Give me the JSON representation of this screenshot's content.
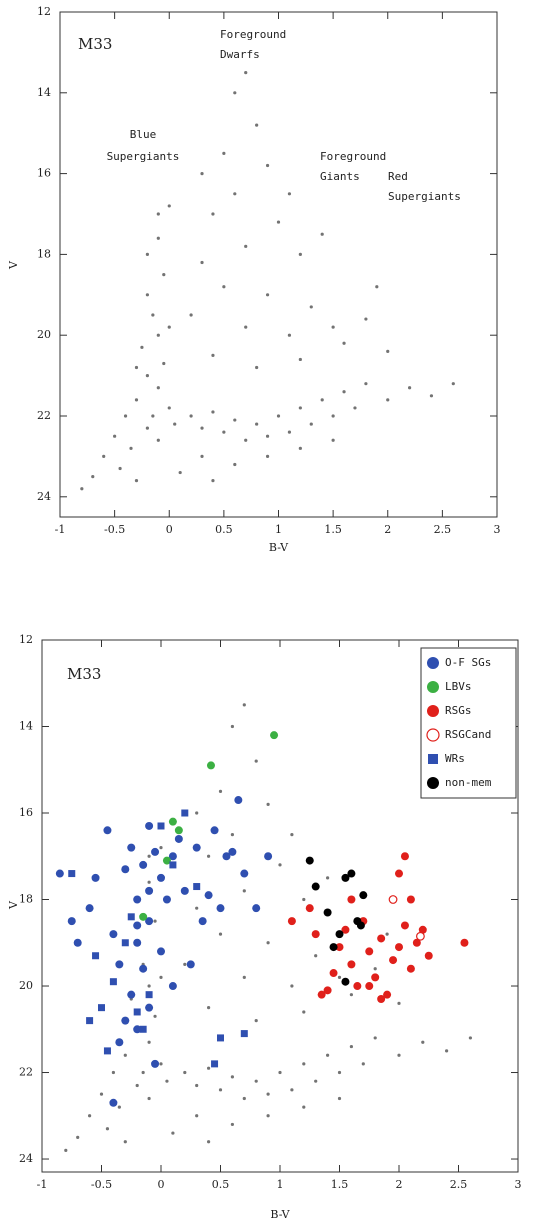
{
  "chart_data": [
    {
      "type": "scatter",
      "panel_label": "M33",
      "xlabel": "B-V",
      "ylabel": "V",
      "xlim": [
        -1,
        3
      ],
      "ylim": [
        24.5,
        12
      ],
      "xticks": [
        -1,
        -0.5,
        0,
        0.5,
        1,
        1.5,
        2,
        2.5,
        3
      ],
      "yticks": [
        12,
        14,
        16,
        18,
        20,
        22,
        24
      ],
      "annotations": [
        {
          "lines": [
            "Foreground",
            "Dwarfs"
          ]
        },
        {
          "lines": [
            "Blue",
            "Supergiants"
          ]
        },
        {
          "lines": [
            "Foreground",
            "Giants"
          ]
        },
        {
          "lines": [
            "Red",
            "Supergiants"
          ]
        }
      ],
      "series": [
        {
          "color": "#000000",
          "marker": "dot",
          "x": [
            -0.2,
            -0.15,
            -0.1,
            -0.25,
            -0.05,
            -0.2,
            -0.1,
            -0.3,
            0.0,
            -0.15,
            -0.2,
            0.05,
            -0.1,
            -0.35,
            -0.05,
            -0.2,
            -0.1,
            0.0,
            -0.3,
            -0.4,
            -0.5,
            -0.6,
            -0.45,
            -0.7,
            -0.8,
            -0.3,
            0.2,
            0.3,
            0.4,
            0.5,
            0.6,
            0.7,
            0.8,
            0.9,
            1.0,
            1.1,
            1.2,
            1.3,
            1.4,
            1.5,
            1.6,
            1.7,
            1.8,
            2.0,
            2.2,
            2.4,
            2.6,
            0.3,
            0.6,
            0.9,
            1.2,
            1.5,
            0.1,
            0.4,
            0.6,
            0.7,
            0.8,
            0.5,
            0.9,
            0.6,
            0.4,
            1.0,
            0.7,
            0.3,
            1.2,
            0.5,
            0.9,
            1.3,
            0.2,
            0.7,
            1.1,
            1.5,
            0.4,
            0.8,
            1.2,
            1.6,
            1.8,
            1.9,
            2.0,
            0.3,
            1.1,
            1.4,
            0.0,
            -0.1
          ],
          "values": [
            19.0,
            19.5,
            20.0,
            20.3,
            20.7,
            21.0,
            21.3,
            21.6,
            21.8,
            22.0,
            22.3,
            22.2,
            22.6,
            22.8,
            18.5,
            18.0,
            17.6,
            19.8,
            20.8,
            22.0,
            22.5,
            23.0,
            23.3,
            23.5,
            23.8,
            23.6,
            22.0,
            22.3,
            21.9,
            22.4,
            22.1,
            22.6,
            22.2,
            22.5,
            22.0,
            22.4,
            21.8,
            22.2,
            21.6,
            22.0,
            21.4,
            21.8,
            21.2,
            21.6,
            21.3,
            21.5,
            21.2,
            23.0,
            23.2,
            23.0,
            22.8,
            22.6,
            23.4,
            23.6,
            14.0,
            13.5,
            14.8,
            15.5,
            15.8,
            16.5,
            17.0,
            17.2,
            17.8,
            18.2,
            18.0,
            18.8,
            19.0,
            19.3,
            19.5,
            19.8,
            20.0,
            19.8,
            20.5,
            20.8,
            20.6,
            20.2,
            19.6,
            18.8,
            20.4,
            16.0,
            16.5,
            17.5,
            16.8,
            17.0
          ]
        }
      ]
    },
    {
      "type": "scatter",
      "panel_label": "M33",
      "xlabel": "B-V",
      "ylabel": "V",
      "xlim": [
        -1,
        3
      ],
      "ylim": [
        24.3,
        12
      ],
      "xticks": [
        -1,
        -0.5,
        0,
        0.5,
        1,
        1.5,
        2,
        2.5,
        3
      ],
      "yticks": [
        12,
        14,
        16,
        18,
        20,
        22,
        24
      ],
      "legend": "upper right",
      "series": [
        {
          "color": "#000000",
          "marker": "dot",
          "x": [
            -0.2,
            -0.15,
            -0.1,
            -0.25,
            -0.05,
            -0.2,
            -0.1,
            -0.3,
            0.0,
            -0.15,
            -0.2,
            0.05,
            -0.1,
            -0.35,
            -0.05,
            -0.2,
            -0.1,
            0.0,
            -0.3,
            -0.4,
            -0.5,
            -0.6,
            -0.45,
            -0.7,
            -0.8,
            -0.3,
            0.2,
            0.3,
            0.4,
            0.5,
            0.6,
            0.7,
            0.8,
            0.9,
            1.0,
            1.1,
            1.2,
            1.3,
            1.4,
            1.5,
            1.6,
            1.7,
            1.8,
            2.0,
            2.2,
            2.4,
            2.6,
            0.3,
            0.6,
            0.9,
            1.2,
            1.5,
            0.1,
            0.4,
            0.6,
            0.7,
            0.8,
            0.5,
            0.9,
            0.6,
            0.4,
            1.0,
            0.7,
            0.3,
            1.2,
            0.5,
            0.9,
            1.3,
            0.2,
            0.7,
            1.1,
            1.5,
            0.4,
            0.8,
            1.2,
            1.6,
            1.8,
            1.9,
            2.0,
            0.3,
            1.1,
            1.4,
            0.0,
            -0.1
          ],
          "values": [
            19.0,
            19.5,
            20.0,
            20.3,
            20.7,
            21.0,
            21.3,
            21.6,
            21.8,
            22.0,
            22.3,
            22.2,
            22.6,
            22.8,
            18.5,
            18.0,
            17.6,
            19.8,
            20.8,
            22.0,
            22.5,
            23.0,
            23.3,
            23.5,
            23.8,
            23.6,
            22.0,
            22.3,
            21.9,
            22.4,
            22.1,
            22.6,
            22.2,
            22.5,
            22.0,
            22.4,
            21.8,
            22.2,
            21.6,
            22.0,
            21.4,
            21.8,
            21.2,
            21.6,
            21.3,
            21.5,
            21.2,
            23.0,
            23.2,
            23.0,
            22.8,
            22.6,
            23.4,
            23.6,
            14.0,
            13.5,
            14.8,
            15.5,
            15.8,
            16.5,
            17.0,
            17.2,
            17.8,
            18.2,
            18.0,
            18.8,
            19.0,
            19.3,
            19.5,
            19.8,
            20.0,
            19.8,
            20.5,
            20.8,
            20.6,
            20.2,
            19.6,
            18.8,
            20.4,
            16.0,
            16.5,
            17.5,
            16.8,
            17.0
          ]
        },
        {
          "name": "O-F SGs",
          "color": "#2f4fb0",
          "marker": "circle",
          "x": [
            -0.85,
            -0.75,
            -0.7,
            -0.6,
            -0.55,
            -0.45,
            -0.4,
            -0.35,
            -0.3,
            -0.25,
            -0.2,
            -0.15,
            -0.1,
            -0.05,
            0.0,
            -0.2,
            -0.15,
            -0.1,
            -0.25,
            -0.3,
            -0.1,
            -0.2,
            -0.35,
            0.0,
            0.05,
            0.1,
            0.15,
            0.2,
            0.3,
            0.35,
            0.4,
            0.45,
            0.5,
            0.55,
            0.6,
            0.65,
            0.7,
            0.8,
            0.9,
            -0.4,
            -0.05,
            0.25,
            0.1,
            -0.2,
            -0.1
          ],
          "values": [
            17.4,
            18.5,
            19.0,
            18.2,
            17.5,
            16.4,
            18.8,
            19.5,
            17.3,
            16.8,
            18.0,
            17.2,
            16.3,
            16.9,
            17.5,
            19.0,
            19.6,
            18.5,
            20.2,
            20.8,
            20.5,
            21.0,
            21.3,
            19.2,
            18.0,
            17.0,
            16.6,
            17.8,
            16.8,
            18.5,
            17.9,
            16.4,
            18.2,
            17.0,
            16.9,
            15.7,
            17.4,
            18.2,
            17.0,
            22.7,
            21.8,
            19.5,
            20.0,
            18.6,
            17.8
          ]
        },
        {
          "name": "LBVs",
          "color": "#3cb043",
          "marker": "circle",
          "x": [
            0.42,
            0.95,
            0.1,
            0.15,
            0.05,
            -0.15
          ],
          "values": [
            14.9,
            14.2,
            16.2,
            16.4,
            17.1,
            18.4
          ]
        },
        {
          "name": "RSGs",
          "color": "#e0201b",
          "marker": "circle",
          "x": [
            1.1,
            1.25,
            1.3,
            1.4,
            1.45,
            1.5,
            1.55,
            1.6,
            1.65,
            1.7,
            1.75,
            1.8,
            1.85,
            1.9,
            1.95,
            2.0,
            2.05,
            2.1,
            2.15,
            2.2,
            2.25,
            2.05,
            2.0,
            1.85,
            2.55,
            1.6,
            1.35,
            1.75,
            2.1
          ],
          "values": [
            18.5,
            18.2,
            18.8,
            20.1,
            19.7,
            19.1,
            18.7,
            19.5,
            20.0,
            18.5,
            19.2,
            19.8,
            18.9,
            20.2,
            19.4,
            19.1,
            18.6,
            18.0,
            19.0,
            18.7,
            19.3,
            17.0,
            17.4,
            20.3,
            19.0,
            18.0,
            20.2,
            20.0,
            19.6
          ]
        },
        {
          "name": "RSGCand",
          "color": "#e0201b",
          "marker": "open-circle",
          "x": [
            1.95,
            2.18
          ],
          "values": [
            18.0,
            18.85
          ]
        },
        {
          "name": "WRs",
          "color": "#2f4fb0",
          "marker": "square",
          "x": [
            -0.75,
            -0.55,
            -0.5,
            -0.45,
            -0.4,
            -0.3,
            -0.25,
            -0.2,
            -0.15,
            -0.1,
            0.0,
            0.1,
            0.2,
            0.3,
            0.5,
            0.45,
            0.7,
            -0.6
          ],
          "values": [
            17.4,
            19.3,
            20.5,
            21.5,
            19.9,
            19.0,
            18.4,
            20.6,
            21.0,
            20.2,
            16.3,
            17.2,
            16.0,
            17.7,
            21.2,
            21.8,
            21.1,
            20.8
          ]
        },
        {
          "name": "non-mem",
          "color": "#000000",
          "marker": "circle",
          "x": [
            1.25,
            1.3,
            1.4,
            1.5,
            1.55,
            1.6,
            1.65,
            1.7,
            1.55,
            1.45,
            1.68
          ],
          "values": [
            17.1,
            17.7,
            18.3,
            18.8,
            17.5,
            17.4,
            18.5,
            17.9,
            19.9,
            19.1,
            18.6
          ]
        }
      ]
    }
  ]
}
